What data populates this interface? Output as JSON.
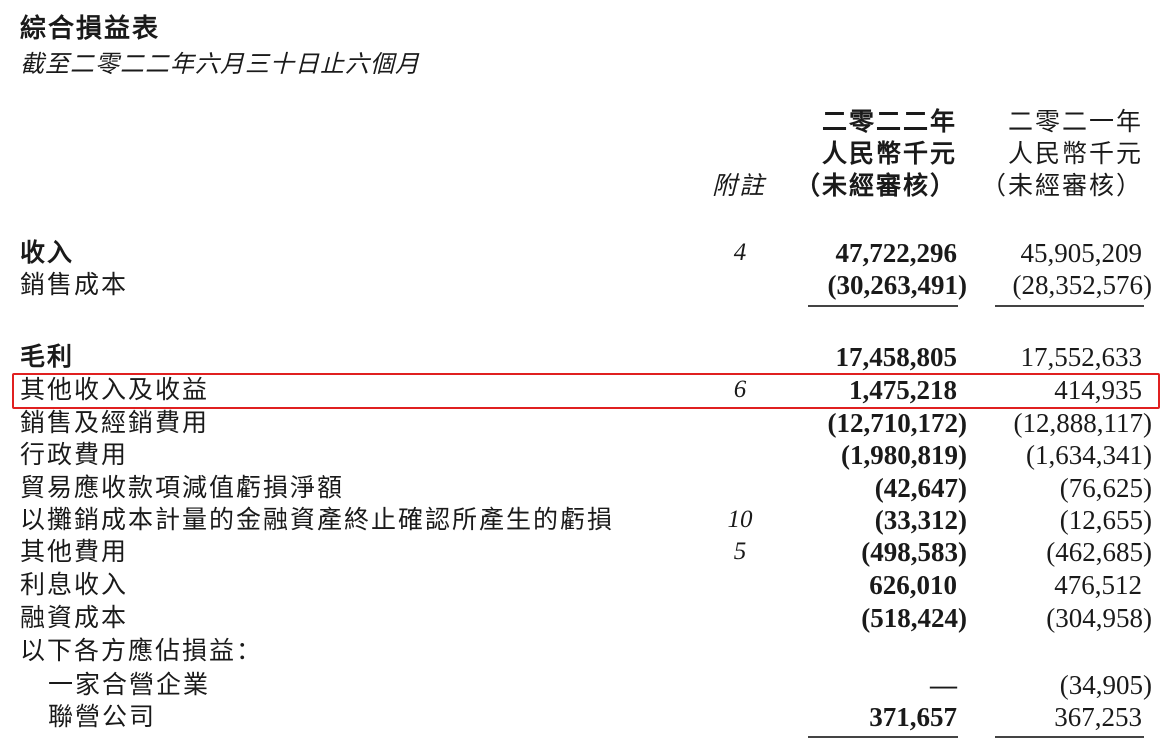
{
  "title": "綜合損益表",
  "subtitle": "截至二零二二年六月三十日止六個月",
  "columns": {
    "note": "附註",
    "current": [
      "二零二二年",
      "人民幣千元",
      "（未經審核）"
    ],
    "prior": [
      "二零二一年",
      "人民幣千元",
      "（未經審核）"
    ]
  },
  "highlight_color": "#e02020",
  "rows": [
    {
      "label": "收入",
      "note": "4",
      "current": "47,722,296",
      "prior": "45,905,209"
    },
    {
      "label": "銷售成本",
      "note": "",
      "current": "(30,263,491)",
      "prior": "(28,352,576)"
    },
    {
      "label": "毛利",
      "note": "",
      "current": "17,458,805",
      "prior": "17,552,633"
    },
    {
      "label": "其他收入及收益",
      "note": "6",
      "current": "1,475,218",
      "prior": "414,935"
    },
    {
      "label": "銷售及經銷費用",
      "note": "",
      "current": "(12,710,172)",
      "prior": "(12,888,117)"
    },
    {
      "label": "行政費用",
      "note": "",
      "current": "(1,980,819)",
      "prior": "(1,634,341)"
    },
    {
      "label": "貿易應收款項減值虧損淨額",
      "note": "",
      "current": "(42,647)",
      "prior": "(76,625)"
    },
    {
      "label": "以攤銷成本計量的金融資產終止確認所產生的虧損",
      "note": "10",
      "current": "(33,312)",
      "prior": "(12,655)"
    },
    {
      "label": "其他費用",
      "note": "5",
      "current": "(498,583)",
      "prior": "(462,685)"
    },
    {
      "label": "利息收入",
      "note": "",
      "current": "626,010",
      "prior": "476,512"
    },
    {
      "label": "融資成本",
      "note": "",
      "current": "(518,424)",
      "prior": "(304,958)"
    },
    {
      "label": "以下各方應佔損益：",
      "note": "",
      "current": "",
      "prior": ""
    },
    {
      "label": "一家合營企業",
      "note": "",
      "current": "—",
      "prior": "(34,905)"
    },
    {
      "label": "聯營公司",
      "note": "",
      "current": "371,657",
      "prior": "367,253"
    }
  ]
}
